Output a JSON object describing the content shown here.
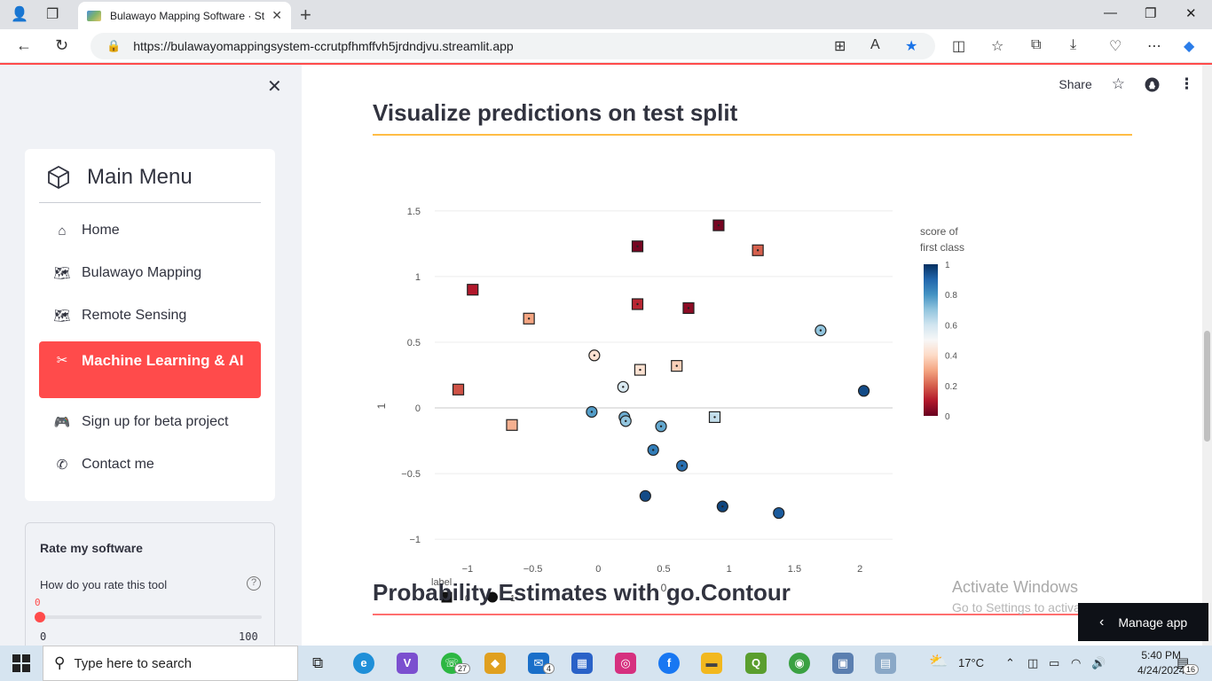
{
  "browser": {
    "tab_title": "Bulawayo Mapping Software · St",
    "url": "https://bulawayomappingsystem-ccrutpfhmffvh5jrdndjvu.streamlit.app"
  },
  "sidebar": {
    "menu_title": "Main Menu",
    "items": [
      {
        "label": "Home",
        "icon": "house-icon"
      },
      {
        "label": "Bulawayo Mapping",
        "icon": "map-icon"
      },
      {
        "label": "Remote Sensing",
        "icon": "map-icon"
      },
      {
        "label": "Machine Learning & AI",
        "icon": "tools-icon",
        "active": true
      },
      {
        "label": "Sign up for beta project",
        "icon": "gamepad-icon"
      },
      {
        "label": "Contact me",
        "icon": "phone-icon"
      }
    ],
    "rating": {
      "title": "Rate my software",
      "question": "How do you rate this tool",
      "value": "0",
      "min": "0",
      "max": "100"
    }
  },
  "header": {
    "share_label": "Share"
  },
  "main": {
    "section1_title": "Visualize predictions on test split",
    "section2_title": "Probability Estimates with go.Contour"
  },
  "chart_data": {
    "type": "scatter",
    "title": "",
    "xlabel": "0",
    "ylabel": "1",
    "xlim": [
      -1.25,
      2.25
    ],
    "ylim": [
      -1.1,
      1.6
    ],
    "xticks": [
      "−1",
      "−0.5",
      "0",
      "0.5",
      "1",
      "1.5",
      "2"
    ],
    "xtick_values": [
      -1,
      -0.5,
      0,
      0.5,
      1,
      1.5,
      2
    ],
    "yticks": [
      "−1",
      "−0.5",
      "0",
      "0.5",
      "1",
      "1.5"
    ],
    "ytick_values": [
      -1,
      -0.5,
      0,
      0.5,
      1,
      1.5
    ],
    "grid": true,
    "legend": {
      "title": "label",
      "entries": [
        {
          "label": "0",
          "symbol": "square"
        },
        {
          "label": "1",
          "symbol": "circle"
        }
      ],
      "placement": "bottom-left"
    },
    "colorbar": {
      "title_line1": "score of",
      "title_line2": "first class",
      "ticks": [
        "0",
        "0.2",
        "0.4",
        "0.6",
        "0.8",
        "1"
      ],
      "tick_values": [
        0,
        0.2,
        0.4,
        0.6,
        0.8,
        1
      ],
      "colorscale": [
        "#67001f",
        "#b2182b",
        "#d6604d",
        "#f4a582",
        "#fddbc7",
        "#f7f7f7",
        "#d1e5f0",
        "#92c5de",
        "#4393c3",
        "#2166ac",
        "#053061"
      ]
    },
    "points": [
      {
        "x": -0.96,
        "y": 0.9,
        "label": 0,
        "score": 0.1,
        "dot": false
      },
      {
        "x": -1.07,
        "y": 0.14,
        "label": 0,
        "score": 0.18,
        "dot": false
      },
      {
        "x": -0.53,
        "y": 0.68,
        "label": 0,
        "score": 0.3,
        "dot": true
      },
      {
        "x": -0.66,
        "y": -0.13,
        "label": 0,
        "score": 0.32,
        "dot": false
      },
      {
        "x": 0.3,
        "y": 1.23,
        "label": 0,
        "score": 0.02,
        "dot": true
      },
      {
        "x": 0.3,
        "y": 0.79,
        "label": 0,
        "score": 0.12,
        "dot": true
      },
      {
        "x": 0.92,
        "y": 1.39,
        "label": 0,
        "score": 0.02,
        "dot": true
      },
      {
        "x": 1.22,
        "y": 1.2,
        "label": 0,
        "score": 0.2,
        "dot": true
      },
      {
        "x": 0.69,
        "y": 0.76,
        "label": 0,
        "score": 0.05,
        "dot": true
      },
      {
        "x": 0.32,
        "y": 0.29,
        "label": 0,
        "score": 0.42,
        "dot": true
      },
      {
        "x": 0.6,
        "y": 0.32,
        "label": 0,
        "score": 0.38,
        "dot": true
      },
      {
        "x": 0.89,
        "y": -0.07,
        "label": 0,
        "score": 0.62,
        "dot": true
      },
      {
        "x": -0.03,
        "y": 0.4,
        "label": 1,
        "score": 0.42,
        "dot": true
      },
      {
        "x": 0.19,
        "y": 0.16,
        "label": 1,
        "score": 0.58,
        "dot": true
      },
      {
        "x": -0.05,
        "y": -0.03,
        "label": 1,
        "score": 0.78,
        "dot": true
      },
      {
        "x": 0.2,
        "y": -0.07,
        "label": 1,
        "score": 0.75,
        "dot": true
      },
      {
        "x": 0.21,
        "y": -0.1,
        "label": 1,
        "score": 0.7,
        "dot": true
      },
      {
        "x": 0.48,
        "y": -0.14,
        "label": 1,
        "score": 0.76,
        "dot": true
      },
      {
        "x": 0.42,
        "y": -0.32,
        "label": 1,
        "score": 0.85,
        "dot": true
      },
      {
        "x": 0.64,
        "y": -0.44,
        "label": 1,
        "score": 0.88,
        "dot": true
      },
      {
        "x": 0.36,
        "y": -0.67,
        "label": 1,
        "score": 0.95,
        "dot": false
      },
      {
        "x": 0.95,
        "y": -0.75,
        "label": 1,
        "score": 0.96,
        "dot": true
      },
      {
        "x": 1.38,
        "y": -0.8,
        "label": 1,
        "score": 0.92,
        "dot": false
      },
      {
        "x": 1.7,
        "y": 0.59,
        "label": 1,
        "score": 0.7,
        "dot": true
      },
      {
        "x": 2.03,
        "y": 0.13,
        "label": 1,
        "score": 0.95,
        "dot": false
      }
    ]
  },
  "overlay": {
    "activate_line1": "Activate Windows",
    "activate_line2": "Go to Settings to activate Windows.",
    "manage_app": "Manage app"
  },
  "taskbar": {
    "search_placeholder": "Type here to search",
    "whatsapp_badge": "27",
    "mail_badge": "4",
    "weather": "17°C",
    "time": "5:40 PM",
    "date": "4/24/2024",
    "notifications": "16"
  }
}
